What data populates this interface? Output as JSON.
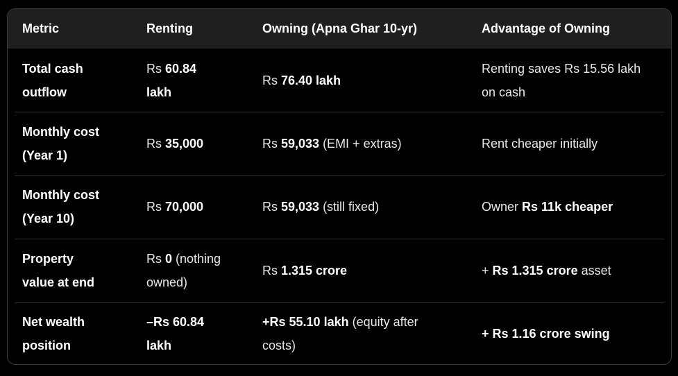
{
  "table": {
    "headers": [
      "Metric",
      "Renting",
      "Owning (Apna Ghar 10-yr)",
      "Advantage of Owning"
    ],
    "rows": [
      {
        "metric": [
          "Total cash",
          "outflow"
        ],
        "renting": {
          "prefix": "Rs ",
          "bold": "60.84",
          "bold2": "lakh",
          "suffix": ""
        },
        "owning": {
          "prefix": "Rs ",
          "bold": "76.40 lakh",
          "suffix": ""
        },
        "advantage": {
          "prefix": "Renting saves Rs 15.56 lakh",
          "bold": "",
          "suffix": "on cash"
        }
      },
      {
        "metric": [
          "Monthly cost",
          "(Year 1)"
        ],
        "renting": {
          "prefix": "Rs ",
          "bold": "35,000",
          "suffix": ""
        },
        "owning": {
          "prefix": "Rs ",
          "bold": "59,033",
          "suffix": " (EMI + extras)"
        },
        "advantage": {
          "prefix": "Rent cheaper initially",
          "bold": "",
          "suffix": ""
        }
      },
      {
        "metric": [
          "Monthly cost",
          "(Year 10)"
        ],
        "renting": {
          "prefix": "Rs ",
          "bold": "70,000",
          "suffix": ""
        },
        "owning": {
          "prefix": "Rs ",
          "bold": "59,033",
          "suffix": " (still fixed)"
        },
        "advantage": {
          "prefix": "Owner ",
          "bold": "Rs 11k cheaper",
          "suffix": ""
        }
      },
      {
        "metric": [
          "Property",
          "value at end"
        ],
        "renting": {
          "prefix": "Rs ",
          "bold": "0",
          "suffix": " (nothing",
          "suffix2": "owned)"
        },
        "owning": {
          "prefix": "Rs ",
          "bold": "1.315 crore",
          "suffix": ""
        },
        "advantage": {
          "prefix": "+ ",
          "bold": "Rs 1.315 crore",
          "suffix": " asset"
        }
      },
      {
        "metric": [
          "Net wealth",
          "position"
        ],
        "renting": {
          "prefix": "",
          "bold": "–Rs 60.84",
          "bold2": "lakh",
          "suffix": ""
        },
        "owning": {
          "prefix": "",
          "bold": "+Rs 55.10 lakh",
          "suffix": " (equity after",
          "suffix2": "costs)"
        },
        "advantage": {
          "prefix": "",
          "bold": "+ Rs 1.16 crore swing",
          "suffix": ""
        }
      }
    ]
  },
  "colors": {
    "background": "#000000",
    "header_background": "#1f1f1f",
    "text": "#e8e8e8",
    "border": "#3a3a3a"
  }
}
